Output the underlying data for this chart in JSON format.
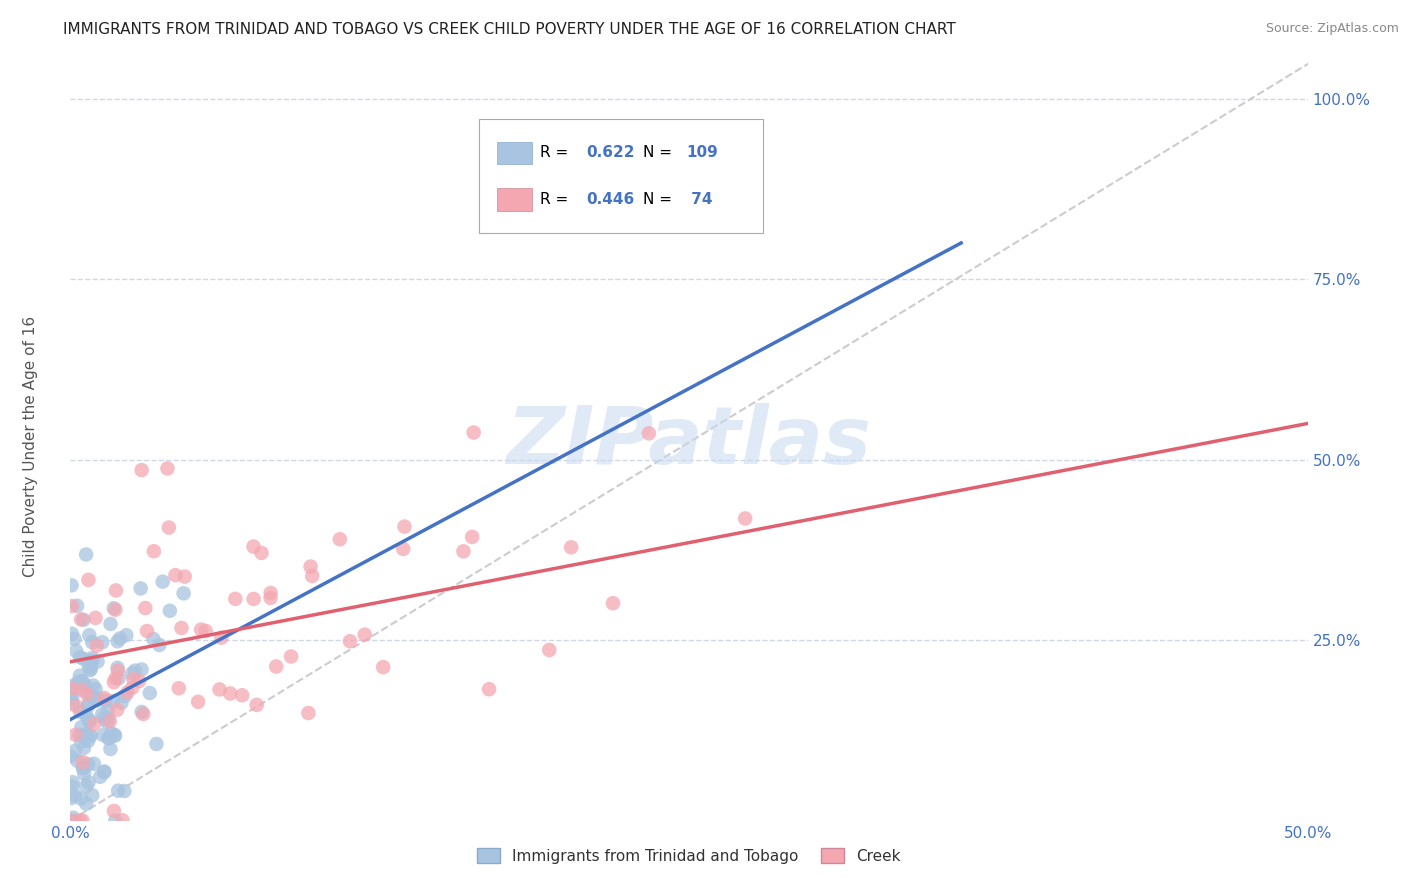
{
  "title": "IMMIGRANTS FROM TRINIDAD AND TOBAGO VS CREEK CHILD POVERTY UNDER THE AGE OF 16 CORRELATION CHART",
  "source": "Source: ZipAtlas.com",
  "ylabel": "Child Poverty Under the Age of 16",
  "xlim": [
    0.0,
    0.5
  ],
  "ylim": [
    0.0,
    1.05
  ],
  "xtick_positions": [
    0.0,
    0.1,
    0.2,
    0.3,
    0.4,
    0.5
  ],
  "xticklabels": [
    "0.0%",
    "",
    "",
    "",
    "",
    "50.0%"
  ],
  "ytick_positions": [
    0.0,
    0.25,
    0.5,
    0.75,
    1.0
  ],
  "ytick_labels": [
    "",
    "25.0%",
    "50.0%",
    "75.0%",
    "100.0%"
  ],
  "blue_R": 0.622,
  "blue_N": 109,
  "pink_R": 0.446,
  "pink_N": 74,
  "blue_color": "#a8c4e0",
  "pink_color": "#f4a7b0",
  "blue_line_color": "#4472c4",
  "pink_line_color": "#e06070",
  "diag_line_color": "#cccccc",
  "background_color": "#ffffff",
  "grid_color": "#d0d8e8",
  "title_color": "#222222",
  "axis_label_color": "#4472c4",
  "legend_R_color": "#4472c4",
  "legend_N_color": "#4472c4",
  "watermark": "ZIPatlas",
  "watermark_color": "#c8d8f0",
  "blue_line_x": [
    0.0,
    0.36
  ],
  "blue_line_y": [
    0.14,
    0.8
  ],
  "pink_line_x": [
    0.0,
    0.5
  ],
  "pink_line_y": [
    0.22,
    0.55
  ]
}
